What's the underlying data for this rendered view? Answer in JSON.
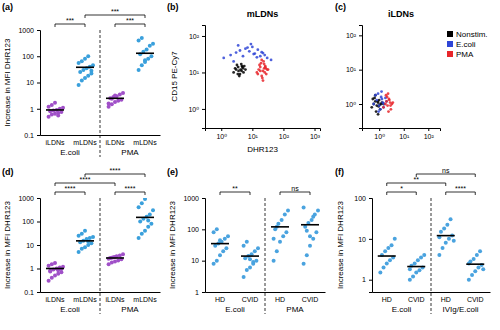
{
  "chart_data": [
    {
      "type": "strip",
      "panel": "(a)",
      "y_label": "Increase in MFI DHR123",
      "log": "y",
      "categories": [
        "iLDNs",
        "mLDNs",
        "iLDNs",
        "mLDNs"
      ],
      "groups": [
        "E.coli",
        "PMA"
      ],
      "colors": [
        "#a050c8",
        "#3aa0dc",
        "#a050c8",
        "#3aa0dc"
      ],
      "values": [
        [
          0.5,
          0.6,
          0.65,
          0.7,
          0.75,
          0.8,
          0.85,
          0.9,
          1.0,
          1.1,
          1.2,
          1.4,
          1.7,
          0.55
        ],
        [
          8,
          12,
          15,
          18,
          22,
          25,
          30,
          35,
          40,
          45,
          55,
          65,
          80,
          100,
          28
        ],
        [
          1.2,
          1.5,
          1.8,
          2.0,
          2.2,
          2.5,
          2.8,
          3.0,
          3.5,
          4.0,
          1.6,
          2.4,
          3.2
        ],
        [
          30,
          45,
          60,
          80,
          100,
          120,
          150,
          180,
          250,
          300,
          400,
          500,
          70
        ]
      ],
      "means": [
        0.9,
        38,
        2.5,
        130
      ],
      "comparisons": [
        {
          "from": 0,
          "to": 1,
          "label": "***"
        },
        {
          "from": 2,
          "to": 3,
          "label": "***"
        },
        {
          "from": 1,
          "to": 3,
          "label": "***"
        }
      ],
      "ylim": [
        0.1,
        1000
      ],
      "yticks": [
        0.1,
        1,
        10,
        100,
        1000
      ]
    },
    {
      "type": "scatter",
      "panel": "(b)",
      "title": "mLDNs",
      "x_label": "DHR123",
      "y_label": "CD15 PE-Cy7",
      "log": true,
      "series": [
        {
          "color": "#000000",
          "x": [
            2.5,
            3,
            3.5,
            4,
            4.5,
            5,
            5.5,
            3.2,
            3.8,
            4.2,
            4.8,
            5.2,
            2.8,
            3.6,
            4.4,
            6,
            3.4,
            4.6
          ],
          "y": [
            10,
            12,
            14,
            9,
            11,
            13,
            15,
            16,
            8,
            12,
            14,
            10,
            13,
            11,
            17,
            12,
            9,
            15
          ]
        },
        {
          "color": "#2f45d6",
          "x": [
            1.2,
            2,
            3,
            4,
            5,
            6,
            8,
            10,
            12,
            15,
            20,
            25,
            30,
            40,
            3.5,
            7,
            9,
            18,
            2.5,
            11,
            14,
            22
          ],
          "y": [
            25,
            30,
            35,
            40,
            28,
            45,
            38,
            50,
            33,
            42,
            36,
            30,
            25,
            22,
            55,
            48,
            60,
            28,
            20,
            32,
            26,
            34
          ]
        },
        {
          "color": "#e8262b",
          "x": [
            14,
            16,
            18,
            20,
            22,
            24,
            26,
            28,
            30,
            17,
            19,
            21,
            23,
            25,
            27,
            20,
            22,
            24,
            18,
            26,
            32,
            15
          ],
          "y": [
            10,
            12,
            14,
            8,
            11,
            13,
            15,
            9,
            12,
            16,
            18,
            7,
            20,
            10,
            13,
            22,
            6,
            17,
            11,
            14,
            12,
            9
          ]
        }
      ],
      "xlim": [
        0.3,
        1500
      ],
      "xticks": [
        {
          "value": 1,
          "label": "10⁰"
        },
        {
          "value": 10,
          "label": "10¹"
        },
        {
          "value": 100,
          "label": "10²"
        },
        {
          "value": 1000,
          "label": "10³"
        }
      ],
      "ylim": [
        0.3,
        200
      ],
      "yticks": [
        {
          "value": 1,
          "label": "10⁰"
        },
        {
          "value": 10,
          "label": "10¹"
        },
        {
          "value": 100,
          "label": "10²"
        }
      ]
    },
    {
      "type": "scatter",
      "panel": "(c)",
      "title": "iLDNs",
      "log": true,
      "legend": "right",
      "series": [
        {
          "name": "Nonstim.",
          "color": "#000000",
          "x": [
            0.5,
            0.6,
            0.7,
            0.8,
            0.9,
            1,
            1.1,
            1.2,
            0.65,
            0.75,
            0.85,
            0.95,
            1.3,
            0.55,
            1.05,
            0.7,
            0.9,
            1.5
          ],
          "y": [
            0.8,
            1,
            1.2,
            0.9,
            1.1,
            1.3,
            0.7,
            1,
            1.5,
            0.6,
            1.2,
            0.85,
            1.1,
            1.4,
            0.95,
            1.8,
            0.5,
            1
          ]
        },
        {
          "name": "E.coli",
          "color": "#2f45d6",
          "x": [
            0.6,
            0.8,
            1,
            1.2,
            1.4,
            0.9,
            1.1,
            1.3,
            1.6,
            0.7,
            1.5,
            2,
            1.8,
            1.25,
            0.95
          ],
          "y": [
            1,
            1.3,
            0.9,
            1.6,
            1.1,
            2,
            0.7,
            1.4,
            1,
            1.8,
            0.8,
            1.2,
            1.5,
            2.3,
            0.6
          ]
        },
        {
          "name": "PMA",
          "color": "#e8262b",
          "x": [
            1.5,
            1.8,
            2,
            2.2,
            2.5,
            2.8,
            3,
            3.3,
            2.1,
            2.4,
            2.6,
            1.9,
            2.9,
            3.6,
            2.3
          ],
          "y": [
            0.8,
            1,
            1.2,
            0.9,
            1.4,
            1.1,
            0.7,
            1,
            1.6,
            0.6,
            1.3,
            1.8,
            0.9,
            1.1,
            2
          ]
        }
      ],
      "xlim": [
        0.2,
        300
      ],
      "xticks": [
        {
          "value": 1,
          "label": "10⁰"
        },
        {
          "value": 10,
          "label": "10¹"
        },
        {
          "value": 100,
          "label": "10²"
        }
      ],
      "ylim": [
        0.2,
        200
      ],
      "yticks": [
        {
          "value": 1,
          "label": "10⁰"
        },
        {
          "value": 10,
          "label": "10¹"
        },
        {
          "value": 100,
          "label": "10²"
        }
      ]
    },
    {
      "type": "strip",
      "panel": "(d)",
      "y_label": "Increase in MFI DHR123",
      "log": "y",
      "categories": [
        "iLDNs",
        "mLDNs",
        "iLDNs",
        "mLDNs"
      ],
      "groups": [
        "E.coli",
        "PMA"
      ],
      "colors": [
        "#a050c8",
        "#3aa0dc",
        "#a050c8",
        "#3aa0dc"
      ],
      "values": [
        [
          0.3,
          0.4,
          0.5,
          0.6,
          0.7,
          0.8,
          0.9,
          1.0,
          1.1,
          1.2,
          1.3,
          1.5,
          1.7,
          0.85,
          0.95,
          0.75
        ],
        [
          5,
          7,
          8,
          10,
          12,
          13,
          15,
          18,
          20,
          22,
          25,
          30,
          40,
          14
        ],
        [
          1.5,
          1.8,
          2.0,
          2.2,
          2.5,
          2.8,
          3.0,
          3.3,
          3.6,
          4.0,
          2.6,
          2.9,
          3.1
        ],
        [
          20,
          30,
          40,
          60,
          80,
          100,
          130,
          160,
          200,
          300,
          400,
          600,
          900,
          110
        ]
      ],
      "means": [
        1.0,
        15,
        2.8,
        150
      ],
      "comparisons": [
        {
          "from": 0,
          "to": 1,
          "label": "****"
        },
        {
          "from": 2,
          "to": 3,
          "label": "****"
        },
        {
          "from": 0,
          "to": 2,
          "label": "****"
        },
        {
          "from": 1,
          "to": 3,
          "label": "****"
        }
      ],
      "ylim": [
        0.1,
        1000
      ],
      "yticks": [
        0.1,
        1,
        10,
        100,
        1000
      ]
    },
    {
      "type": "strip",
      "panel": "(e)",
      "y_label": "Increase in MFI DHR123",
      "log": "y",
      "categories": [
        "HD",
        "CVID",
        "HD",
        "CVID"
      ],
      "groups": [
        "E.coli",
        "PMA"
      ],
      "colors": [
        "#4aa3df",
        "#4aa3df",
        "#4aa3df",
        "#4aa3df"
      ],
      "values": [
        [
          8,
          10,
          15,
          20,
          25,
          30,
          35,
          40,
          50,
          60,
          80,
          100,
          45
        ],
        [
          3,
          5,
          6,
          8,
          10,
          12,
          14,
          16,
          20,
          25,
          30,
          40,
          11,
          9
        ],
        [
          10,
          20,
          40,
          60,
          80,
          100,
          150,
          200,
          300,
          400,
          50,
          120
        ],
        [
          8,
          15,
          30,
          50,
          80,
          120,
          160,
          200,
          300,
          400,
          500,
          90,
          60,
          250
        ]
      ],
      "means": [
        35,
        14,
        120,
        140
      ],
      "comparisons": [
        {
          "from": 0,
          "to": 1,
          "label": "**"
        },
        {
          "from": 2,
          "to": 3,
          "label": "ns"
        }
      ],
      "ylim": [
        1,
        1000
      ],
      "yticks": [
        1,
        10,
        100,
        1000
      ]
    },
    {
      "type": "strip",
      "panel": "(f)",
      "y_label": "Increase in MFI DHR123",
      "log": "y",
      "categories": [
        "HD",
        "CVID",
        "HD",
        "CVID"
      ],
      "groups": [
        "E.coli",
        "IVIg/E.coli"
      ],
      "colors": [
        "#4aa3df",
        "#4aa3df",
        "#4aa3df",
        "#4aa3df"
      ],
      "values": [
        [
          1.5,
          2,
          2.5,
          3,
          3.5,
          4,
          5,
          6,
          7,
          10
        ],
        [
          1,
          1.2,
          1.5,
          1.7,
          2,
          2.2,
          2.5,
          3,
          3.5,
          4,
          1.8
        ],
        [
          4,
          6,
          8,
          10,
          12,
          15,
          18,
          22,
          30,
          9,
          11
        ],
        [
          1,
          1.3,
          1.6,
          2,
          2.3,
          2.8,
          3.2,
          4,
          5,
          1.8,
          2.5
        ]
      ],
      "means": [
        3.8,
        2.1,
        12,
        2.4
      ],
      "comparisons": [
        {
          "from": 0,
          "to": 1,
          "label": "*"
        },
        {
          "from": 2,
          "to": 3,
          "label": "****"
        },
        {
          "from": 0,
          "to": 2,
          "label": "**"
        },
        {
          "from": 1,
          "to": 3,
          "label": "ns"
        }
      ],
      "ylim": [
        0.5,
        100
      ],
      "yticks": [
        1,
        10,
        100
      ]
    }
  ]
}
